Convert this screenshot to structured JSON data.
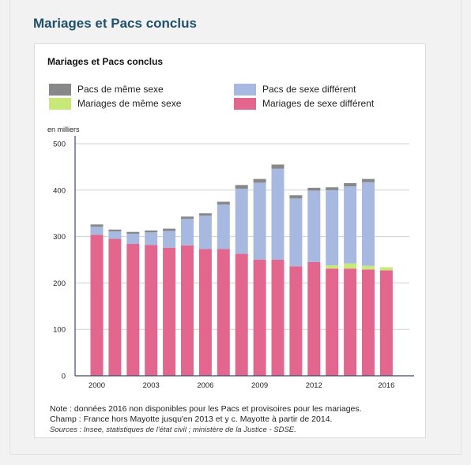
{
  "page": {
    "title": "Mariages et Pacs conclus"
  },
  "legend": [
    {
      "label": "Pacs de même sexe",
      "color": "#888888"
    },
    {
      "label": "Pacs de sexe différent",
      "color": "#a8b9e1"
    },
    {
      "label": "Mariages de même sexe",
      "color": "#c9e87a"
    },
    {
      "label": "Mariages de sexe différent",
      "color": "#e3668f"
    }
  ],
  "notes": {
    "note": "Note : données 2016 non disponibles pour les Pacs et provisoires pour les mariages.",
    "champ": "Champ : France hors Mayotte jusqu'en 2013 et y c. Mayotte à partir de 2014.",
    "sources": "Sources : Insee, statistiques de l'état civil ; ministère de la Justice - SDSE."
  },
  "chart_data": {
    "type": "bar",
    "stacked": true,
    "title": "Mariages et Pacs conclus",
    "ylabel": "en milliers",
    "ylim": [
      0,
      500
    ],
    "yticks": [
      0,
      100,
      200,
      300,
      400,
      500
    ],
    "categories": [
      "2000",
      "2001",
      "2002",
      "2003",
      "2004",
      "2005",
      "2006",
      "2007",
      "2008",
      "2009",
      "2010",
      "2011",
      "2012",
      "2013",
      "2014",
      "2015",
      "2016"
    ],
    "xtick_labels": [
      "2000",
      "2003",
      "2006",
      "2009",
      "2012",
      "2016"
    ],
    "grid": true,
    "series": [
      {
        "name": "Mariages de sexe différent",
        "color": "#e3668f",
        "values": [
          304,
          295,
          284,
          282,
          276,
          281,
          273,
          273,
          263,
          250,
          250,
          236,
          245,
          231,
          231,
          229,
          227
        ]
      },
      {
        "name": "Mariages de même sexe",
        "color": "#c9e87a",
        "values": [
          0,
          0,
          0,
          0,
          0,
          0,
          0,
          0,
          0,
          0,
          0,
          0,
          0,
          7,
          11,
          8,
          7
        ]
      },
      {
        "name": "Pacs de sexe différent",
        "color": "#a8b9e1",
        "values": [
          17,
          16,
          22,
          27,
          36,
          57,
          72,
          96,
          140,
          166,
          196,
          146,
          154,
          162,
          166,
          180,
          0
        ]
      },
      {
        "name": "Pacs de même sexe",
        "color": "#888888",
        "values": [
          5,
          4,
          4,
          4,
          5,
          5,
          5,
          6,
          8,
          8,
          9,
          7,
          6,
          6,
          7,
          7,
          0
        ]
      }
    ]
  }
}
